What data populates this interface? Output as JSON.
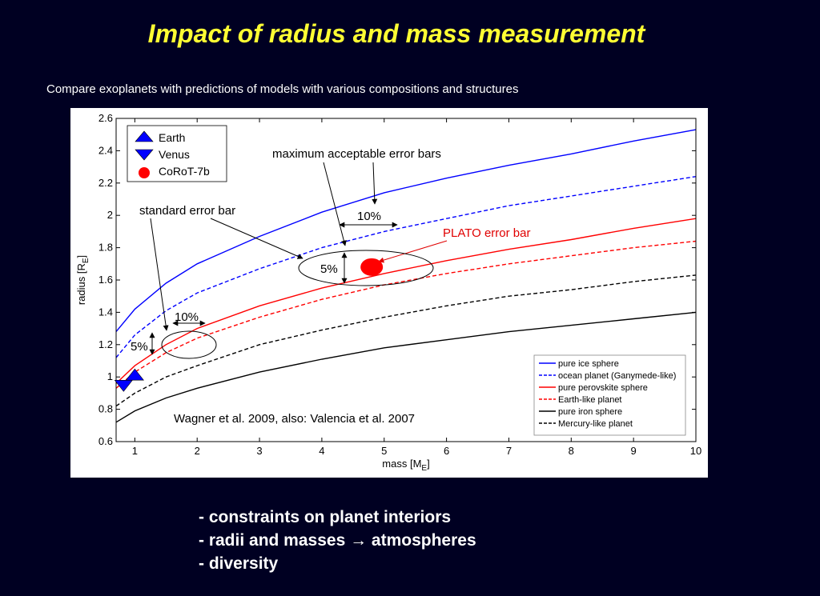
{
  "slide": {
    "title": "Impact of radius and mass measurement",
    "subtitle": "Compare exoplanets with predictions of models  with various compositions and structures",
    "bullets": [
      "- constraints on planet interiors",
      "- radii and masses → atmospheres",
      "- diversity"
    ]
  },
  "chart_data": {
    "type": "line",
    "xlabel": "mass [M_E]",
    "ylabel": "radius [R_E]",
    "xlim": [
      0.7,
      10
    ],
    "ylim": [
      0.6,
      2.6
    ],
    "xticks": [
      1,
      2,
      3,
      4,
      5,
      6,
      7,
      8,
      9,
      10
    ],
    "yticks": [
      0.6,
      0.8,
      1,
      1.2,
      1.4,
      1.6,
      1.8,
      2,
      2.2,
      2.4,
      2.6
    ],
    "grid": false,
    "series": [
      {
        "name": "pure ice sphere",
        "color": "#0000ff",
        "dash": false,
        "x": [
          0.7,
          1,
          1.5,
          2,
          3,
          4,
          5,
          6,
          7,
          8,
          9,
          10
        ],
        "y": [
          1.28,
          1.42,
          1.58,
          1.7,
          1.87,
          2.02,
          2.14,
          2.23,
          2.31,
          2.38,
          2.46,
          2.53
        ]
      },
      {
        "name": "ocean planet (Ganymede-like)",
        "color": "#0000ff",
        "dash": true,
        "x": [
          0.7,
          1,
          1.5,
          2,
          3,
          4,
          5,
          6,
          7,
          8,
          9,
          10
        ],
        "y": [
          1.12,
          1.26,
          1.41,
          1.52,
          1.67,
          1.8,
          1.9,
          1.98,
          2.06,
          2.12,
          2.18,
          2.24
        ]
      },
      {
        "name": "pure perovskite sphere",
        "color": "#ff0000",
        "dash": false,
        "x": [
          0.7,
          1,
          1.5,
          2,
          3,
          4,
          5,
          6,
          7,
          8,
          9,
          10
        ],
        "y": [
          0.96,
          1.07,
          1.2,
          1.3,
          1.44,
          1.55,
          1.64,
          1.72,
          1.79,
          1.85,
          1.92,
          1.98
        ]
      },
      {
        "name": "Earth-like planet",
        "color": "#ff0000",
        "dash": true,
        "x": [
          0.7,
          1,
          1.5,
          2,
          3,
          4,
          5,
          6,
          7,
          8,
          9,
          10
        ],
        "y": [
          0.93,
          1.03,
          1.15,
          1.24,
          1.37,
          1.48,
          1.57,
          1.64,
          1.7,
          1.75,
          1.8,
          1.84
        ]
      },
      {
        "name": "pure iron sphere",
        "color": "#000000",
        "dash": false,
        "x": [
          0.7,
          1,
          1.5,
          2,
          3,
          4,
          5,
          6,
          7,
          8,
          9,
          10
        ],
        "y": [
          0.72,
          0.79,
          0.87,
          0.93,
          1.03,
          1.11,
          1.18,
          1.23,
          1.28,
          1.32,
          1.36,
          1.4
        ]
      },
      {
        "name": "Mercury-like planet",
        "color": "#000000",
        "dash": true,
        "x": [
          0.7,
          1,
          1.5,
          2,
          3,
          4,
          5,
          6,
          7,
          8,
          9,
          10
        ],
        "y": [
          0.82,
          0.9,
          1.0,
          1.07,
          1.2,
          1.29,
          1.37,
          1.44,
          1.5,
          1.54,
          1.59,
          1.63
        ]
      }
    ],
    "points": [
      {
        "name": "Earth",
        "x": 1.0,
        "y": 1.0,
        "marker": "triangle-up",
        "color": "#0000ff"
      },
      {
        "name": "Venus",
        "x": 0.82,
        "y": 0.95,
        "marker": "triangle-down",
        "color": "#0000ff"
      },
      {
        "name": "CoRoT-7b",
        "x": 4.8,
        "y": 1.68,
        "marker": "circle",
        "color": "#ff0000"
      }
    ],
    "legend_markers": [
      "Earth",
      "Venus",
      "CoRoT-7b"
    ],
    "annotations": {
      "max_error": "maximum acceptable error bars",
      "std_error": "standard error bar",
      "plato": "PLATO error bar",
      "pct10_a": "10%",
      "pct5_a": "5%",
      "pct10_b": "10%",
      "pct5_b": "5%",
      "citation": "Wagner et al. 2009, also: Valencia et al. 2007"
    },
    "legend_position": "bottom-right"
  }
}
